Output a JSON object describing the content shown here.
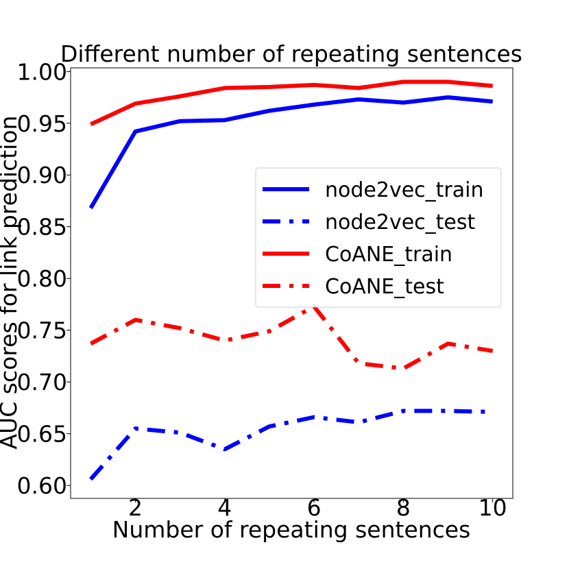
{
  "chart_data": {
    "type": "line",
    "title": "Different number of repeating sentences",
    "xlabel": "Number of repeating sentences",
    "ylabel": "AUC scores for link prediction",
    "x": [
      1,
      2,
      3,
      4,
      5,
      6,
      7,
      8,
      9,
      10
    ],
    "xlim": [
      0.55,
      10.45
    ],
    "ylim": [
      0.5875,
      1.0035
    ],
    "xticks": [
      2,
      4,
      6,
      8,
      10
    ],
    "xtick_labels": [
      "2",
      "4",
      "6",
      "8",
      "10"
    ],
    "yticks": [
      0.6,
      0.65,
      0.7,
      0.75,
      0.8,
      0.85,
      0.9,
      0.95,
      1.0
    ],
    "ytick_labels": [
      "0.60",
      "0.65",
      "0.70",
      "0.75",
      "0.80",
      "0.85",
      "0.90",
      "0.95",
      "1.00"
    ],
    "grid": false,
    "legend_position": "center-right",
    "series": [
      {
        "name": "node2vec_train",
        "color": "#0000ff",
        "style": "solid",
        "values": [
          0.868,
          0.942,
          0.952,
          0.953,
          0.962,
          0.968,
          0.973,
          0.97,
          0.975,
          0.971
        ]
      },
      {
        "name": "node2vec_test",
        "color": "#0000ff",
        "style": "dashdot",
        "values": [
          0.606,
          0.655,
          0.651,
          0.635,
          0.657,
          0.666,
          0.661,
          0.672,
          0.672,
          0.671
        ]
      },
      {
        "name": "CoANE_train",
        "color": "#ff0000",
        "style": "solid",
        "values": [
          0.949,
          0.969,
          0.976,
          0.984,
          0.985,
          0.987,
          0.984,
          0.99,
          0.99,
          0.986
        ]
      },
      {
        "name": "CoANE_test",
        "color": "#ff0000",
        "style": "dashdot",
        "values": [
          0.737,
          0.76,
          0.752,
          0.74,
          0.749,
          0.773,
          0.718,
          0.713,
          0.737,
          0.73
        ]
      }
    ]
  }
}
